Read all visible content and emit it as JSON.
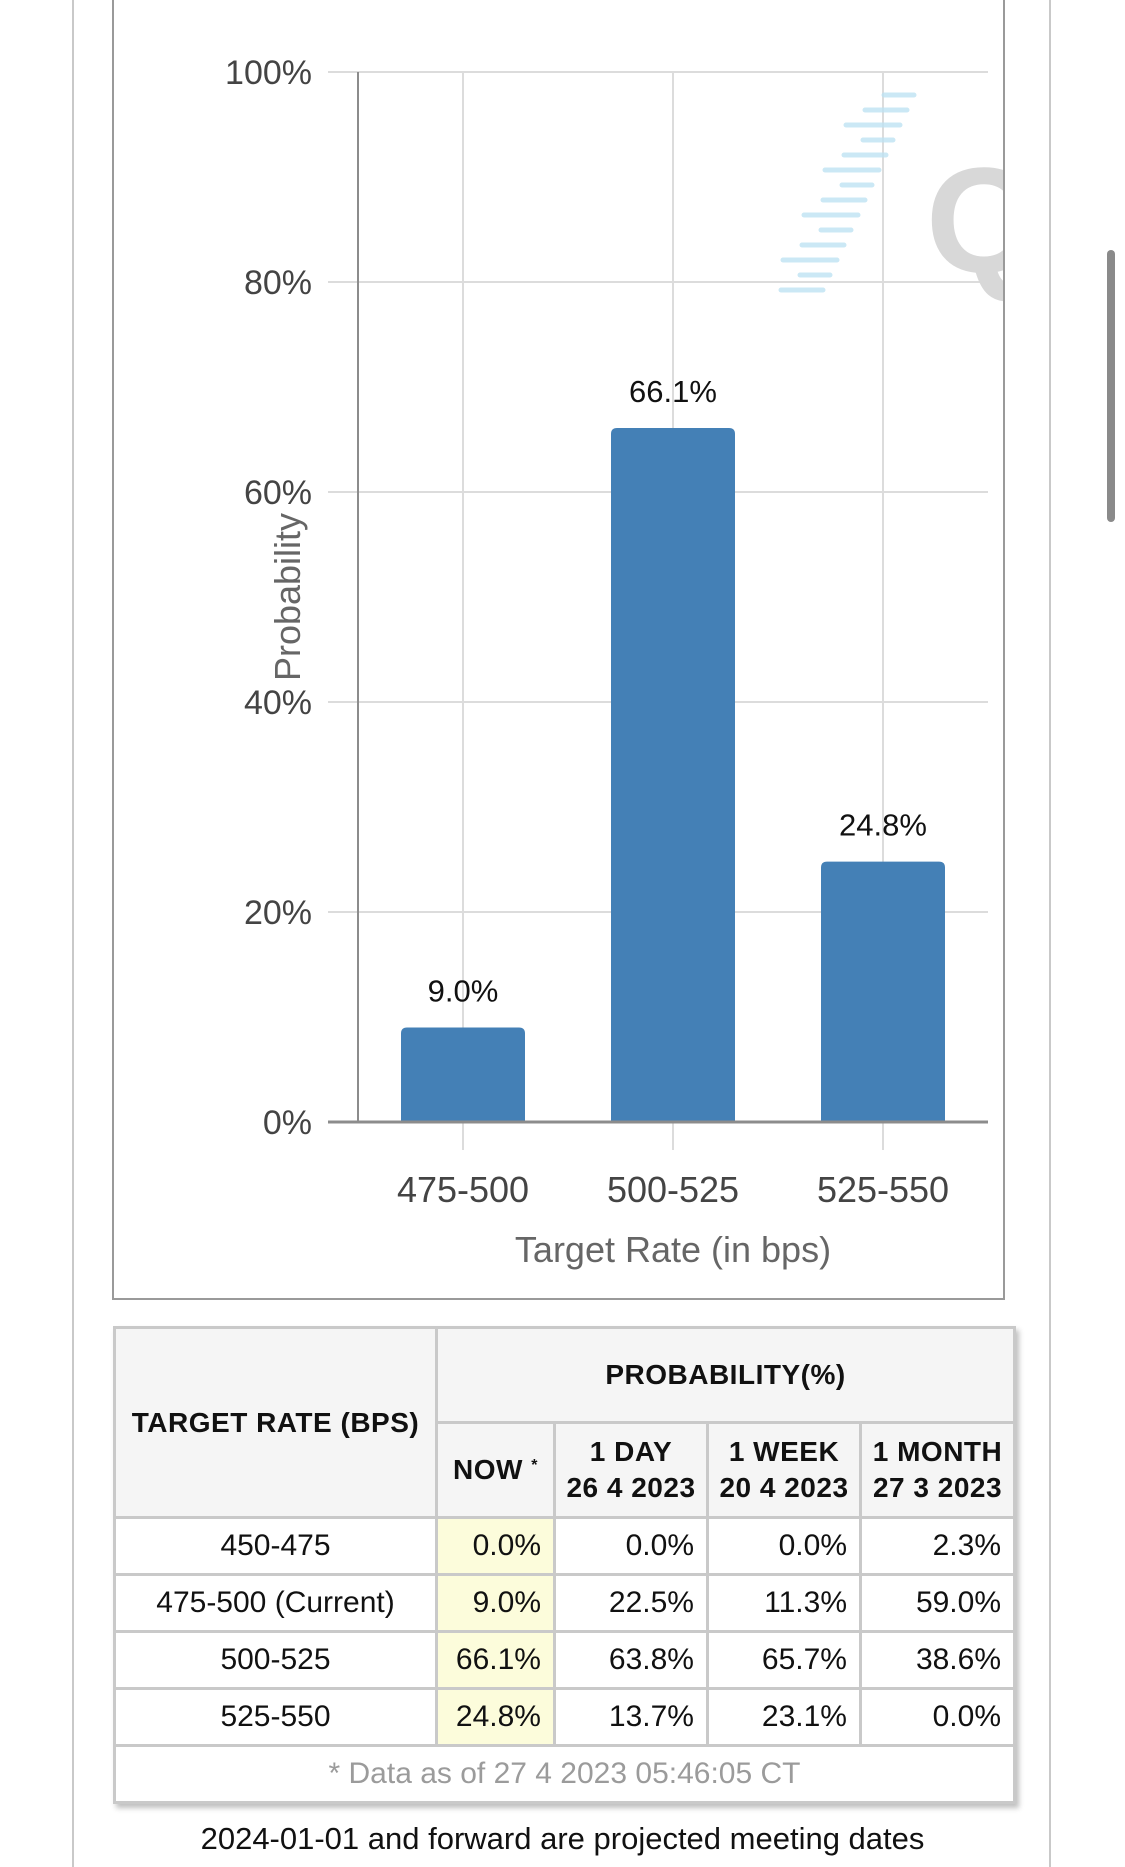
{
  "chart_data": {
    "type": "bar",
    "categories": [
      "475-500",
      "500-525",
      "525-550"
    ],
    "values": [
      9.0,
      66.1,
      24.8
    ],
    "value_labels": [
      "9.0%",
      "66.1%",
      "24.8%"
    ],
    "xlabel": "Target Rate (in bps)",
    "ylabel": "Probability",
    "ylim": [
      0,
      100
    ],
    "yticks": [
      0,
      20,
      40,
      60,
      80,
      100
    ],
    "ytick_labels": [
      "0%",
      "20%",
      "40%",
      "60%",
      "80%",
      "100%"
    ],
    "grid": true,
    "bar_color": "#4480b6",
    "watermark": "Q"
  },
  "table": {
    "rate_header": "TARGET RATE (BPS)",
    "prob_header": "PROBABILITY(%)",
    "col_now": "NOW",
    "col_now_marker": "*",
    "cols": [
      {
        "label": "1 DAY",
        "date": "26 4 2023"
      },
      {
        "label": "1 WEEK",
        "date": "20 4 2023"
      },
      {
        "label": "1 MONTH",
        "date": "27 3 2023"
      }
    ],
    "rows": [
      {
        "rate": "450-475",
        "now": "0.0%",
        "d1": "0.0%",
        "w1": "0.0%",
        "m1": "2.3%"
      },
      {
        "rate": "475-500 (Current)",
        "now": "9.0%",
        "d1": "22.5%",
        "w1": "11.3%",
        "m1": "59.0%"
      },
      {
        "rate": "500-525",
        "now": "66.1%",
        "d1": "63.8%",
        "w1": "65.7%",
        "m1": "38.6%"
      },
      {
        "rate": "525-550",
        "now": "24.8%",
        "d1": "13.7%",
        "w1": "23.1%",
        "m1": "0.0%"
      }
    ],
    "footnote": "* Data as of 27 4 2023 05:46:05 CT"
  },
  "note": "2024-01-01 and forward are projected meeting dates",
  "colors": {
    "now_highlight": "#fcfcdb",
    "header_bg": "#f5f5f5",
    "border": "#c9c9c9"
  }
}
